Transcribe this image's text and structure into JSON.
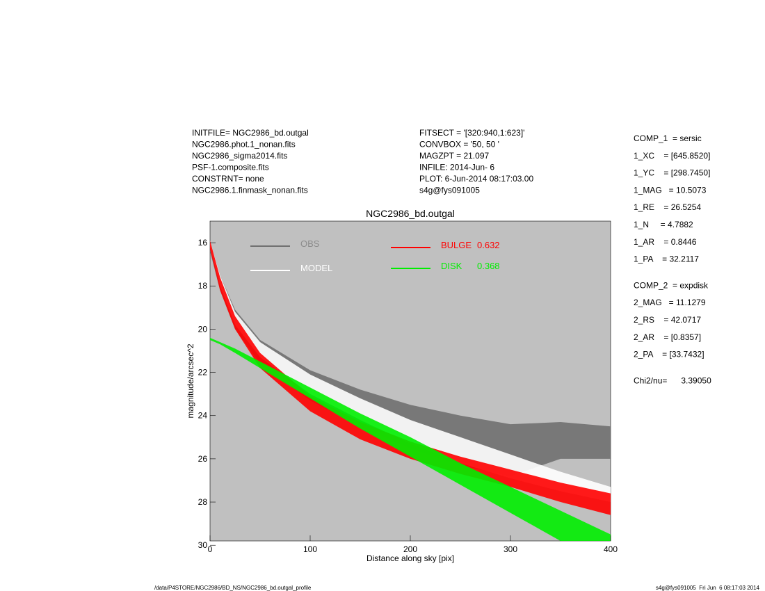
{
  "header": {
    "left": [
      "INITFILE= NGC2986_bd.outgal",
      "NGC2986.phot.1_nonan.fits",
      "NGC2986_sigma2014.fits",
      "PSF-1.composite.fits",
      "CONSTRNT= none",
      "NGC2986.1.finmask_nonan.fits"
    ],
    "middle": [
      "FITSECT = '[320:940,1:623]'",
      "CONVBOX = '50, 50  '",
      "MAGZPT =              21.097",
      "INFILE: 2014-Jun- 6",
      "PLOT:  6-Jun-2014 08:17:03.00",
      "s4g@fys091005"
    ]
  },
  "params": [
    "COMP_1  = sersic",
    "1_XC    = [645.8520]",
    "1_YC    = [298.7450]",
    "1_MAG   = 10.5073",
    "1_RE    = 26.5254",
    "1_N     = 4.7882",
    "1_AR    = 0.8446",
    "1_PA    = 32.2117",
    "COMP_2  = expdisk",
    "2_MAG   = 11.1279",
    "2_RS    = 42.0717",
    "2_AR    = [0.8357]",
    "2_PA    = [33.7432]",
    "Chi2/nu=      3.39050"
  ],
  "footer": {
    "left": "/data/P4STORE/NGC2986/BD_NS/NGC2986_bd.outgal_profile",
    "right": "s4g@fys091005  Fri Jun  6 08:17:03 2014"
  },
  "chart_data": {
    "type": "band",
    "title": "NGC2986_bd.outgal",
    "x_label": "Distance along sky [pix]",
    "y_label": "magnitude/arcsec^2",
    "xlim": [
      0,
      400
    ],
    "xticks": [
      0,
      100,
      200,
      300,
      400
    ],
    "ylim": [
      29.8,
      15
    ],
    "yticks": [
      16,
      18,
      20,
      22,
      24,
      26,
      28,
      30
    ],
    "x": [
      0,
      10,
      25,
      50,
      100,
      150,
      200,
      250,
      300,
      350,
      400
    ],
    "series": [
      {
        "name": "OBS",
        "color": "#707070",
        "low": [
          15.9,
          17.5,
          19.1,
          20.5,
          21.9,
          22.8,
          23.5,
          24.0,
          24.4,
          24.3,
          24.5
        ],
        "high": [
          16.4,
          18.2,
          20.0,
          21.6,
          23.3,
          24.5,
          25.5,
          26.3,
          26.8,
          26.0,
          26.0
        ]
      },
      {
        "name": "MODEL",
        "color": "#ffffff",
        "low": [
          15.9,
          17.5,
          19.2,
          20.6,
          22.1,
          23.2,
          24.2,
          25.0,
          25.8,
          26.6,
          27.3
        ],
        "high": [
          16.2,
          18.0,
          19.8,
          21.3,
          23.0,
          24.2,
          25.3,
          26.2,
          26.9,
          27.5,
          28.0
        ]
      },
      {
        "name": "BULGE",
        "fraction": 0.632,
        "color": "#ff0000",
        "low": [
          15.9,
          17.6,
          19.4,
          21.1,
          23.1,
          24.3,
          25.2,
          25.9,
          26.5,
          27.1,
          27.6
        ],
        "high": [
          16.3,
          18.2,
          20.0,
          21.8,
          23.8,
          25.1,
          26.0,
          26.7,
          27.3,
          28.0,
          28.6
        ]
      },
      {
        "name": "DISK",
        "fraction": 0.368,
        "color": "#00ee00",
        "low": [
          20.4,
          20.6,
          20.9,
          21.5,
          22.7,
          23.9,
          25.0,
          26.2,
          27.3,
          28.4,
          29.5
        ],
        "high": [
          20.5,
          20.7,
          21.1,
          21.8,
          23.2,
          24.6,
          25.9,
          27.2,
          28.5,
          29.8,
          31.0
        ]
      }
    ]
  }
}
